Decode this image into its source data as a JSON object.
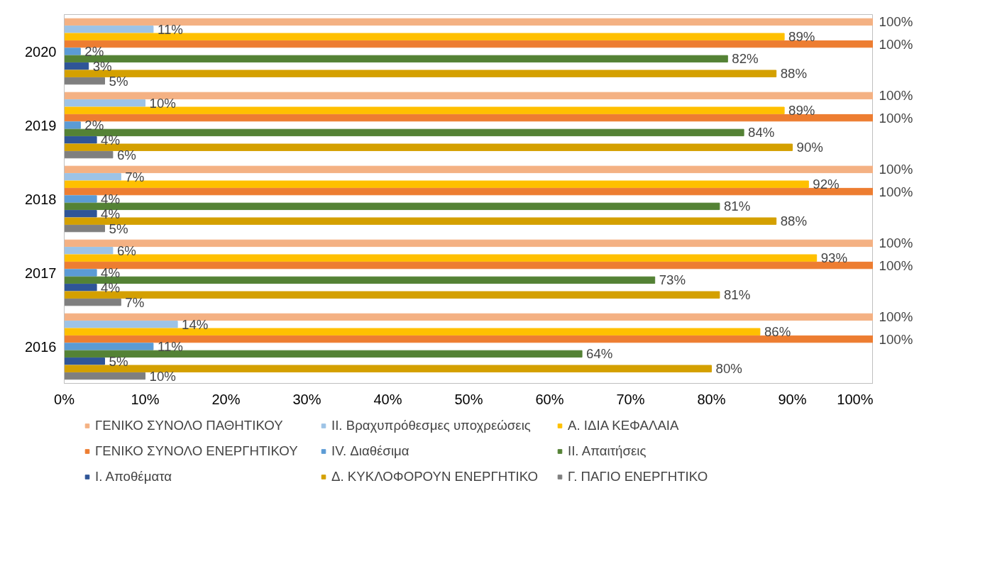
{
  "chart_data": {
    "type": "bar",
    "orientation": "horizontal",
    "categories": [
      "2020",
      "2019",
      "2018",
      "2017",
      "2016"
    ],
    "xlim": [
      0,
      100
    ],
    "xticks": [
      {
        "value": 0,
        "label": "0%"
      },
      {
        "value": 10,
        "label": "10%"
      },
      {
        "value": 20,
        "label": "20%"
      },
      {
        "value": 30,
        "label": "30%"
      },
      {
        "value": 40,
        "label": "40%"
      },
      {
        "value": 50,
        "label": "50%"
      },
      {
        "value": 60,
        "label": "60%"
      },
      {
        "value": 70,
        "label": "70%"
      },
      {
        "value": 80,
        "label": "80%"
      },
      {
        "value": 90,
        "label": "90%"
      },
      {
        "value": 100,
        "label": "100%"
      }
    ],
    "series": [
      {
        "name": "ΓΕΝΙΚΟ ΣΥΝΟΛΟ ΠΑΘΗΤΙΚΟΥ",
        "color": "#f4b183",
        "values": [
          100,
          100,
          100,
          100,
          100
        ],
        "value_labels": [
          "100%",
          "100%",
          "100%",
          "100%",
          "100%"
        ]
      },
      {
        "name": "ΙΙ. Βραχυπρόθεσμες υποχρεώσεις",
        "color": "#9dc3e6",
        "values": [
          11,
          10,
          7,
          6,
          14
        ],
        "value_labels": [
          "11%",
          "10%",
          "7%",
          "6%",
          "14%"
        ]
      },
      {
        "name": "Α. ΙΔΙΑ ΚΕΦΑΛΑΙΑ",
        "color": "#ffc000",
        "values": [
          89,
          89,
          92,
          93,
          86
        ],
        "value_labels": [
          "89%",
          "89%",
          "92%",
          "93%",
          "86%"
        ]
      },
      {
        "name": "ΓΕΝΙΚΟ ΣΥΝΟΛΟ ΕΝΕΡΓΗΤΙΚΟΥ",
        "color": "#ed7d31",
        "values": [
          100,
          100,
          100,
          100,
          100
        ],
        "value_labels": [
          "100%",
          "100%",
          "100%",
          "100%",
          "100%"
        ]
      },
      {
        "name": "IV. Διαθέσιμα",
        "color": "#5b9bd5",
        "values": [
          2,
          2,
          4,
          4,
          11
        ],
        "value_labels": [
          "2%",
          "2%",
          "4%",
          "4%",
          "11%"
        ]
      },
      {
        "name": "ΙΙ. Απαιτήσεις",
        "color": "#548235",
        "values": [
          82,
          84,
          81,
          73,
          64
        ],
        "value_labels": [
          "82%",
          "84%",
          "81%",
          "73%",
          "64%"
        ]
      },
      {
        "name": "Ι. Αποθέματα",
        "color": "#2f5597",
        "values": [
          3,
          4,
          4,
          4,
          5
        ],
        "value_labels": [
          "3%",
          "4%",
          "4%",
          "4%",
          "5%"
        ]
      },
      {
        "name": "Δ. ΚΥΚΛΟΦΟΡΟΥΝ ΕΝΕΡΓΗΤΙΚΟ",
        "color": "#d4a000",
        "values": [
          88,
          90,
          88,
          81,
          80
        ],
        "value_labels": [
          "88%",
          "90%",
          "88%",
          "81%",
          "80%"
        ]
      },
      {
        "name": "Γ. ΠΑΓΙΟ ΕΝΕΡΓΗΤΙΚΟ",
        "color": "#7f7f7f",
        "values": [
          5,
          6,
          5,
          7,
          10
        ],
        "value_labels": [
          "5%",
          "6%",
          "5%",
          "7%",
          "10%"
        ]
      }
    ],
    "grid": false,
    "legend": "bottom"
  }
}
